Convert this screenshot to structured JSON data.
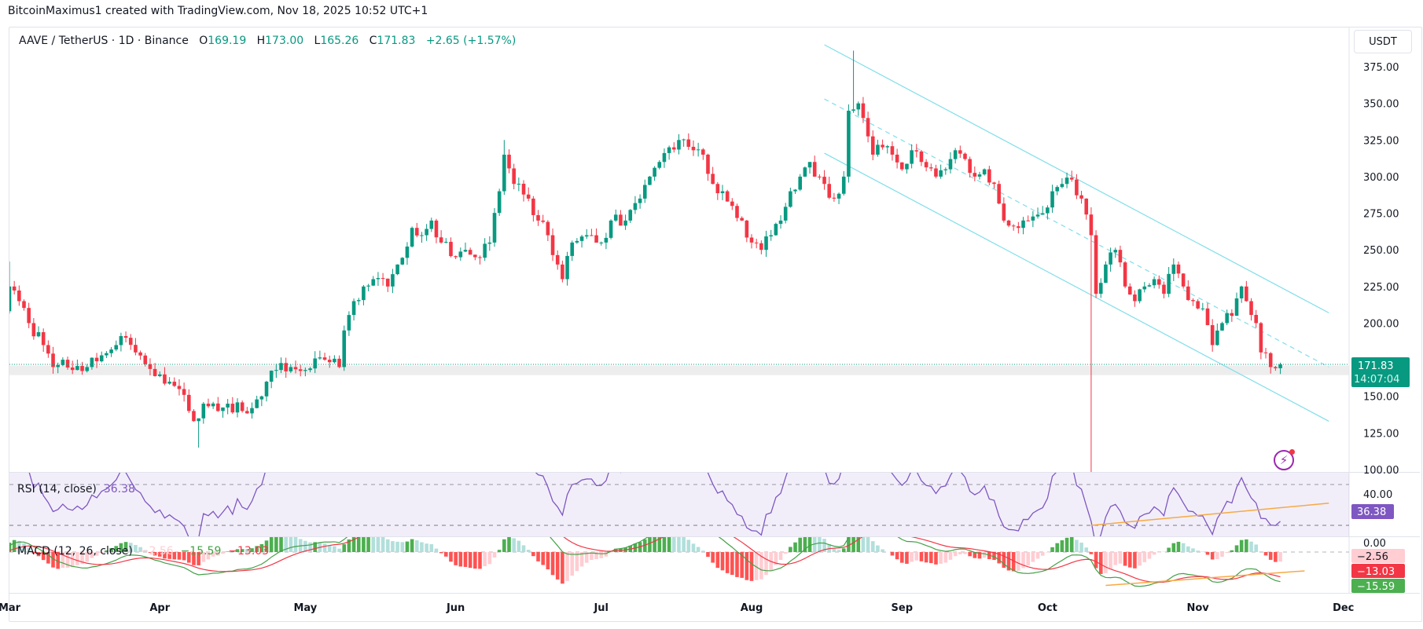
{
  "attribution": "BitcoinMaximus1 created with TradingView.com, Nov 18, 2025 10:52 UTC+1",
  "legend": {
    "symbol": "AAVE / TetherUS · 1D · Binance",
    "o_label": "O",
    "o": "169.19",
    "h_label": "H",
    "h": "173.00",
    "l_label": "L",
    "l": "165.26",
    "c_label": "C",
    "c": "171.83",
    "change": "+2.65 (+1.57%)"
  },
  "currency_button": "USDT",
  "price_axis_labels": [
    "375.00",
    "350.00",
    "325.00",
    "300.00",
    "275.00",
    "250.00",
    "225.00",
    "200.00",
    "150.00",
    "125.00",
    "100.00"
  ],
  "last_price": {
    "value": "171.83",
    "countdown": "14:07:04"
  },
  "rsi": {
    "label": "RSI (14, close)",
    "value": "36.38",
    "axis_label": "40.00"
  },
  "macd": {
    "label": "MACD (12, 26, close)",
    "hist": "−2.56",
    "macd": "−15.59",
    "signal": "−13.03",
    "axis_label": "0.00"
  },
  "time_axis_labels": [
    {
      "date": "2025-03-01",
      "label": "Mar"
    },
    {
      "date": "2025-04-01",
      "label": "Apr"
    },
    {
      "date": "2025-05-01",
      "label": "May"
    },
    {
      "date": "2025-06-01",
      "label": "Jun"
    },
    {
      "date": "2025-07-01",
      "label": "Jul"
    },
    {
      "date": "2025-08-01",
      "label": "Aug"
    },
    {
      "date": "2025-09-01",
      "label": "Sep"
    },
    {
      "date": "2025-10-01",
      "label": "Oct"
    },
    {
      "date": "2025-11-01",
      "label": "Nov"
    },
    {
      "date": "2025-12-01",
      "label": "Dec"
    }
  ],
  "colors": {
    "up": "#089981",
    "down": "#f23645",
    "rsi": "#7e57c2",
    "macd": "#43a047",
    "signal": "#f23645",
    "channel": "#80deea",
    "trendline": "#f7a944",
    "zone": "#e6e6e6"
  },
  "chart_data": {
    "type": "candlestick",
    "timeframe": "1D",
    "ylim": [
      100,
      390
    ],
    "closes": [
      [
        "2025-02-27",
        195
      ],
      [
        "2025-03-01",
        225
      ],
      [
        "2025-03-03",
        215
      ],
      [
        "2025-03-05",
        200
      ],
      [
        "2025-03-08",
        185
      ],
      [
        "2025-03-10",
        170
      ],
      [
        "2025-03-12",
        175
      ],
      [
        "2025-03-14",
        168
      ],
      [
        "2025-03-17",
        170
      ],
      [
        "2025-03-20",
        178
      ],
      [
        "2025-03-23",
        185
      ],
      [
        "2025-03-25",
        190
      ],
      [
        "2025-03-27",
        180
      ],
      [
        "2025-03-29",
        172
      ],
      [
        "2025-04-01",
        165
      ],
      [
        "2025-04-03",
        160
      ],
      [
        "2025-04-05",
        155
      ],
      [
        "2025-04-07",
        140
      ],
      [
        "2025-04-09",
        135
      ],
      [
        "2025-04-10",
        145
      ],
      [
        "2025-04-13",
        140
      ],
      [
        "2025-04-15",
        145
      ],
      [
        "2025-04-18",
        140
      ],
      [
        "2025-04-20",
        142
      ],
      [
        "2025-04-22",
        150
      ],
      [
        "2025-04-23",
        160
      ],
      [
        "2025-04-25",
        168
      ],
      [
        "2025-04-28",
        170
      ],
      [
        "2025-05-01",
        168
      ],
      [
        "2025-05-05",
        175
      ],
      [
        "2025-05-08",
        170
      ],
      [
        "2025-05-09",
        195
      ],
      [
        "2025-05-11",
        215
      ],
      [
        "2025-05-13",
        225
      ],
      [
        "2025-05-15",
        230
      ],
      [
        "2025-05-18",
        225
      ],
      [
        "2025-05-20",
        240
      ],
      [
        "2025-05-23",
        265
      ],
      [
        "2025-05-25",
        260
      ],
      [
        "2025-05-27",
        270
      ],
      [
        "2025-05-29",
        255
      ],
      [
        "2025-06-01",
        245
      ],
      [
        "2025-06-03",
        250
      ],
      [
        "2025-06-05",
        245
      ],
      [
        "2025-06-08",
        255
      ],
      [
        "2025-06-10",
        290
      ],
      [
        "2025-06-11",
        315
      ],
      [
        "2025-06-13",
        295
      ],
      [
        "2025-06-16",
        285
      ],
      [
        "2025-06-18",
        270
      ],
      [
        "2025-06-20",
        260
      ],
      [
        "2025-06-22",
        240
      ],
      [
        "2025-06-23",
        230
      ],
      [
        "2025-06-25",
        255
      ],
      [
        "2025-06-28",
        260
      ],
      [
        "2025-07-01",
        255
      ],
      [
        "2025-07-03",
        270
      ],
      [
        "2025-07-06",
        270
      ],
      [
        "2025-07-09",
        285
      ],
      [
        "2025-07-11",
        300
      ],
      [
        "2025-07-13",
        310
      ],
      [
        "2025-07-15",
        320
      ],
      [
        "2025-07-17",
        325
      ],
      [
        "2025-07-20",
        318
      ],
      [
        "2025-07-22",
        315
      ],
      [
        "2025-07-24",
        295
      ],
      [
        "2025-07-26",
        290
      ],
      [
        "2025-07-28",
        280
      ],
      [
        "2025-07-30",
        270
      ],
      [
        "2025-08-01",
        255
      ],
      [
        "2025-08-03",
        250
      ],
      [
        "2025-08-05",
        260
      ],
      [
        "2025-08-07",
        270
      ],
      [
        "2025-08-09",
        290
      ],
      [
        "2025-08-11",
        300
      ],
      [
        "2025-08-13",
        310
      ],
      [
        "2025-08-14",
        300
      ],
      [
        "2025-08-16",
        295
      ],
      [
        "2025-08-18",
        285
      ],
      [
        "2025-08-20",
        300
      ],
      [
        "2025-08-21",
        345
      ],
      [
        "2025-08-23",
        350
      ],
      [
        "2025-08-24",
        340
      ],
      [
        "2025-08-26",
        315
      ],
      [
        "2025-08-28",
        320
      ],
      [
        "2025-08-30",
        315
      ],
      [
        "2025-09-01",
        305
      ],
      [
        "2025-09-03",
        318
      ],
      [
        "2025-09-05",
        310
      ],
      [
        "2025-09-08",
        300
      ],
      [
        "2025-09-10",
        305
      ],
      [
        "2025-09-12",
        318
      ],
      [
        "2025-09-14",
        312
      ],
      [
        "2025-09-16",
        300
      ],
      [
        "2025-09-18",
        305
      ],
      [
        "2025-09-20",
        295
      ],
      [
        "2025-09-22",
        270
      ],
      [
        "2025-09-25",
        265
      ],
      [
        "2025-09-27",
        270
      ],
      [
        "2025-09-30",
        275
      ],
      [
        "2025-10-02",
        290
      ],
      [
        "2025-10-04",
        295
      ],
      [
        "2025-10-06",
        298
      ],
      [
        "2025-10-08",
        285
      ],
      [
        "2025-10-10",
        260
      ],
      [
        "2025-10-11",
        220
      ],
      [
        "2025-10-13",
        240
      ],
      [
        "2025-10-15",
        250
      ],
      [
        "2025-10-17",
        225
      ],
      [
        "2025-10-19",
        215
      ],
      [
        "2025-10-21",
        225
      ],
      [
        "2025-10-23",
        230
      ],
      [
        "2025-10-25",
        220
      ],
      [
        "2025-10-27",
        240
      ],
      [
        "2025-10-29",
        225
      ],
      [
        "2025-10-31",
        215
      ],
      [
        "2025-11-02",
        210
      ],
      [
        "2025-11-04",
        185
      ],
      [
        "2025-11-06",
        200
      ],
      [
        "2025-11-08",
        205
      ],
      [
        "2025-11-10",
        225
      ],
      [
        "2025-11-11",
        215
      ],
      [
        "2025-11-13",
        200
      ],
      [
        "2025-11-14",
        180
      ],
      [
        "2025-11-16",
        170
      ],
      [
        "2025-11-17",
        169.19
      ],
      [
        "2025-11-18",
        171.83
      ]
    ],
    "notable_wicks": [
      {
        "date": "2025-03-01",
        "high": 242
      },
      {
        "date": "2025-04-09",
        "low": 115
      },
      {
        "date": "2025-06-11",
        "high": 325
      },
      {
        "date": "2025-08-22",
        "high": 386
      },
      {
        "date": "2025-10-10",
        "low": 60
      }
    ],
    "last_candle": {
      "date": "2025-11-18",
      "open": 169.19,
      "high": 173.0,
      "low": 165.26,
      "close": 171.83
    },
    "drawings": {
      "channel_upper": [
        [
          "2025-08-16",
          390
        ],
        [
          "2025-11-28",
          207
        ]
      ],
      "channel_mid": [
        [
          "2025-08-16",
          353
        ],
        [
          "2025-11-28",
          170
        ]
      ],
      "channel_lower": [
        [
          "2025-08-16",
          316
        ],
        [
          "2025-11-28",
          133
        ]
      ],
      "support_zone": [
        164.5,
        171
      ],
      "rsi_trendline": [
        [
          "2025-10-10",
          30
        ],
        [
          "2025-11-28",
          40
        ]
      ],
      "macd_trendline": [
        [
          "2025-10-13",
          -17
        ],
        [
          "2025-11-23",
          -9.6
        ]
      ]
    },
    "indicators": [
      "RSI (14, close)",
      "MACD (12, 26, close)"
    ]
  }
}
